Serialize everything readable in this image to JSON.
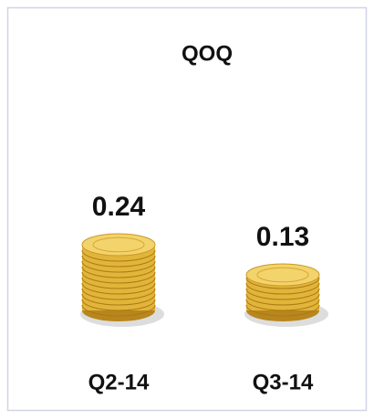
{
  "chart_data": {
    "type": "pictograph",
    "title": "QOQ",
    "title_color": "#9d63e8",
    "categories": [
      "Q2-14",
      "Q3-14"
    ],
    "values": [
      0.24,
      0.13
    ],
    "color": "#e2b53a"
  }
}
